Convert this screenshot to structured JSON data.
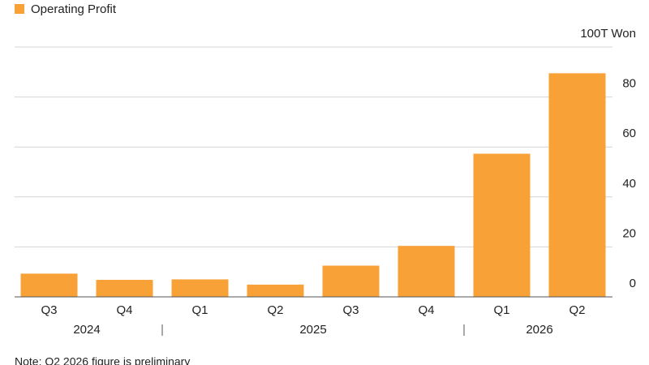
{
  "chart_data": {
    "type": "bar",
    "legend": "Operating Profit",
    "color": "#f7a137",
    "categories": [
      "Q3",
      "Q4",
      "Q1",
      "Q2",
      "Q3",
      "Q4",
      "Q1",
      "Q2"
    ],
    "category_years": [
      "2024",
      "2024",
      "2025",
      "2025",
      "2025",
      "2025",
      "2026",
      "2026"
    ],
    "values": [
      9.3,
      6.8,
      7.0,
      4.9,
      12.5,
      20.4,
      57.3,
      89.5
    ],
    "ylim": [
      0,
      100
    ],
    "yticks": [
      0,
      20,
      40,
      60,
      80,
      {
        "value": 100,
        "label": "100T Won"
      }
    ],
    "grid": true,
    "note": "Note: Q2 2026 figure is preliminary"
  }
}
